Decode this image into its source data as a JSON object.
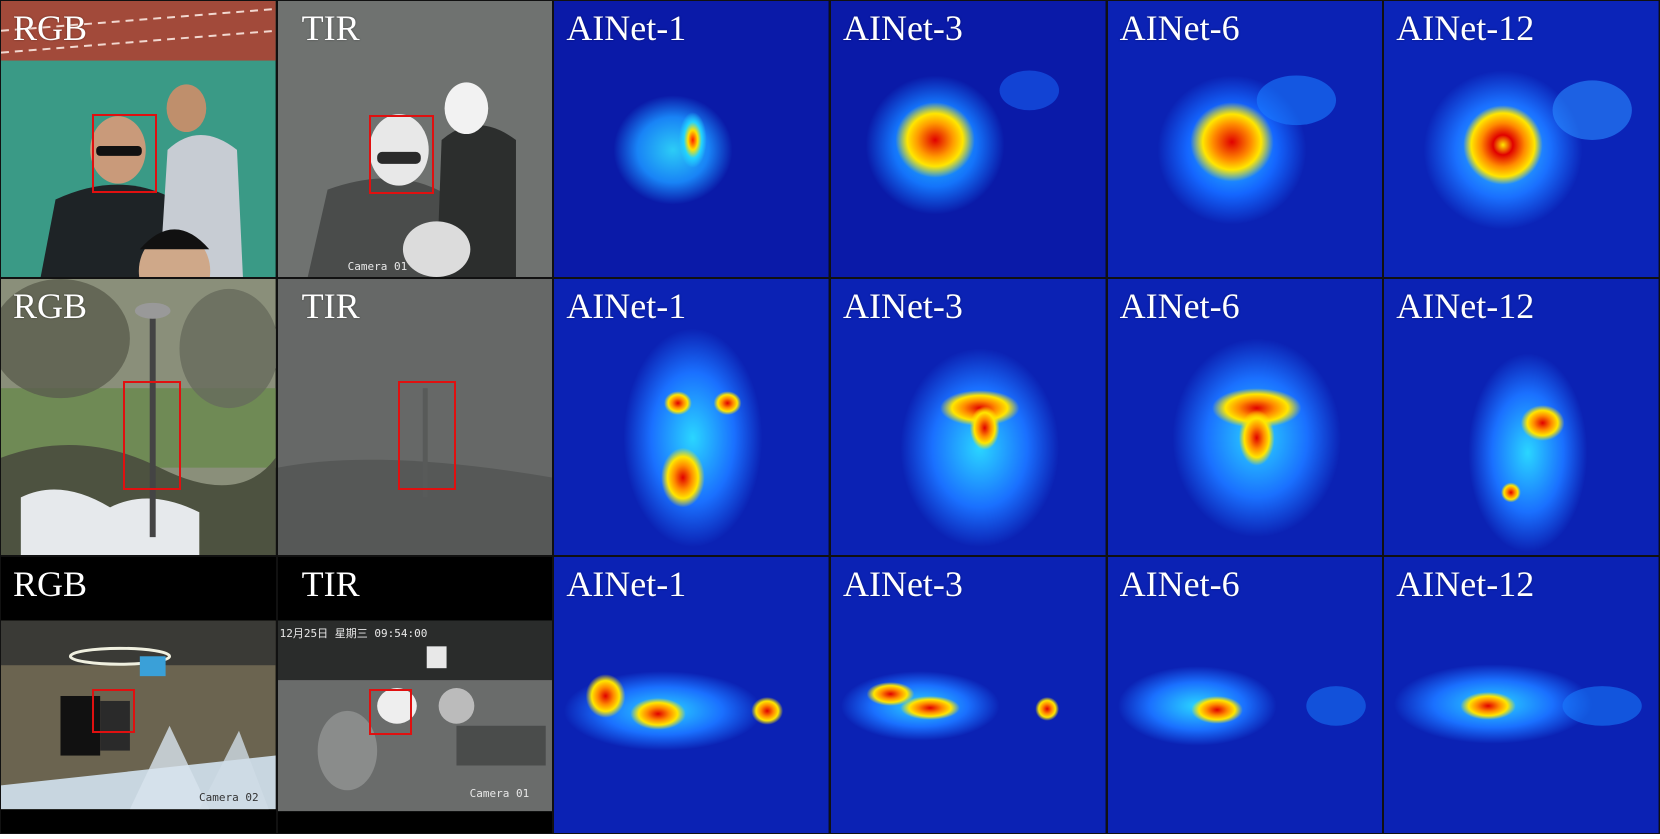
{
  "figure": {
    "rows": [
      {
        "panels": [
          {
            "label": "RGB",
            "kind": "rgb",
            "scene": "track"
          },
          {
            "label": "TIR",
            "kind": "tir",
            "scene": "track",
            "stamp": "Camera 01"
          },
          {
            "label": "AINet-1",
            "kind": "heatmap"
          },
          {
            "label": "AINet-3",
            "kind": "heatmap"
          },
          {
            "label": "AINet-6",
            "kind": "heatmap"
          },
          {
            "label": "AINet-12",
            "kind": "heatmap"
          }
        ]
      },
      {
        "panels": [
          {
            "label": "RGB",
            "kind": "rgb",
            "scene": "park"
          },
          {
            "label": "TIR",
            "kind": "tir",
            "scene": "park"
          },
          {
            "label": "AINet-1",
            "kind": "heatmap"
          },
          {
            "label": "AINet-3",
            "kind": "heatmap"
          },
          {
            "label": "AINet-6",
            "kind": "heatmap"
          },
          {
            "label": "AINet-12",
            "kind": "heatmap"
          }
        ]
      },
      {
        "panels": [
          {
            "label": "RGB",
            "kind": "rgb",
            "scene": "canteen",
            "stamp": "Camera 02"
          },
          {
            "label": "TIR",
            "kind": "tir",
            "scene": "canteen",
            "stamp": "Camera 01",
            "stamp_top": "12月25日 星期三 09:54:00"
          },
          {
            "label": "AINet-1",
            "kind": "heatmap"
          },
          {
            "label": "AINet-3",
            "kind": "heatmap"
          },
          {
            "label": "AINet-6",
            "kind": "heatmap"
          },
          {
            "label": "AINet-12",
            "kind": "heatmap"
          }
        ]
      }
    ],
    "colors": {
      "bbox": "#e01010",
      "heat_low": "#0a1aa8",
      "heat_mid": "#1e9bff",
      "heat_high": "#ffe600",
      "heat_peak": "#e00000"
    }
  }
}
